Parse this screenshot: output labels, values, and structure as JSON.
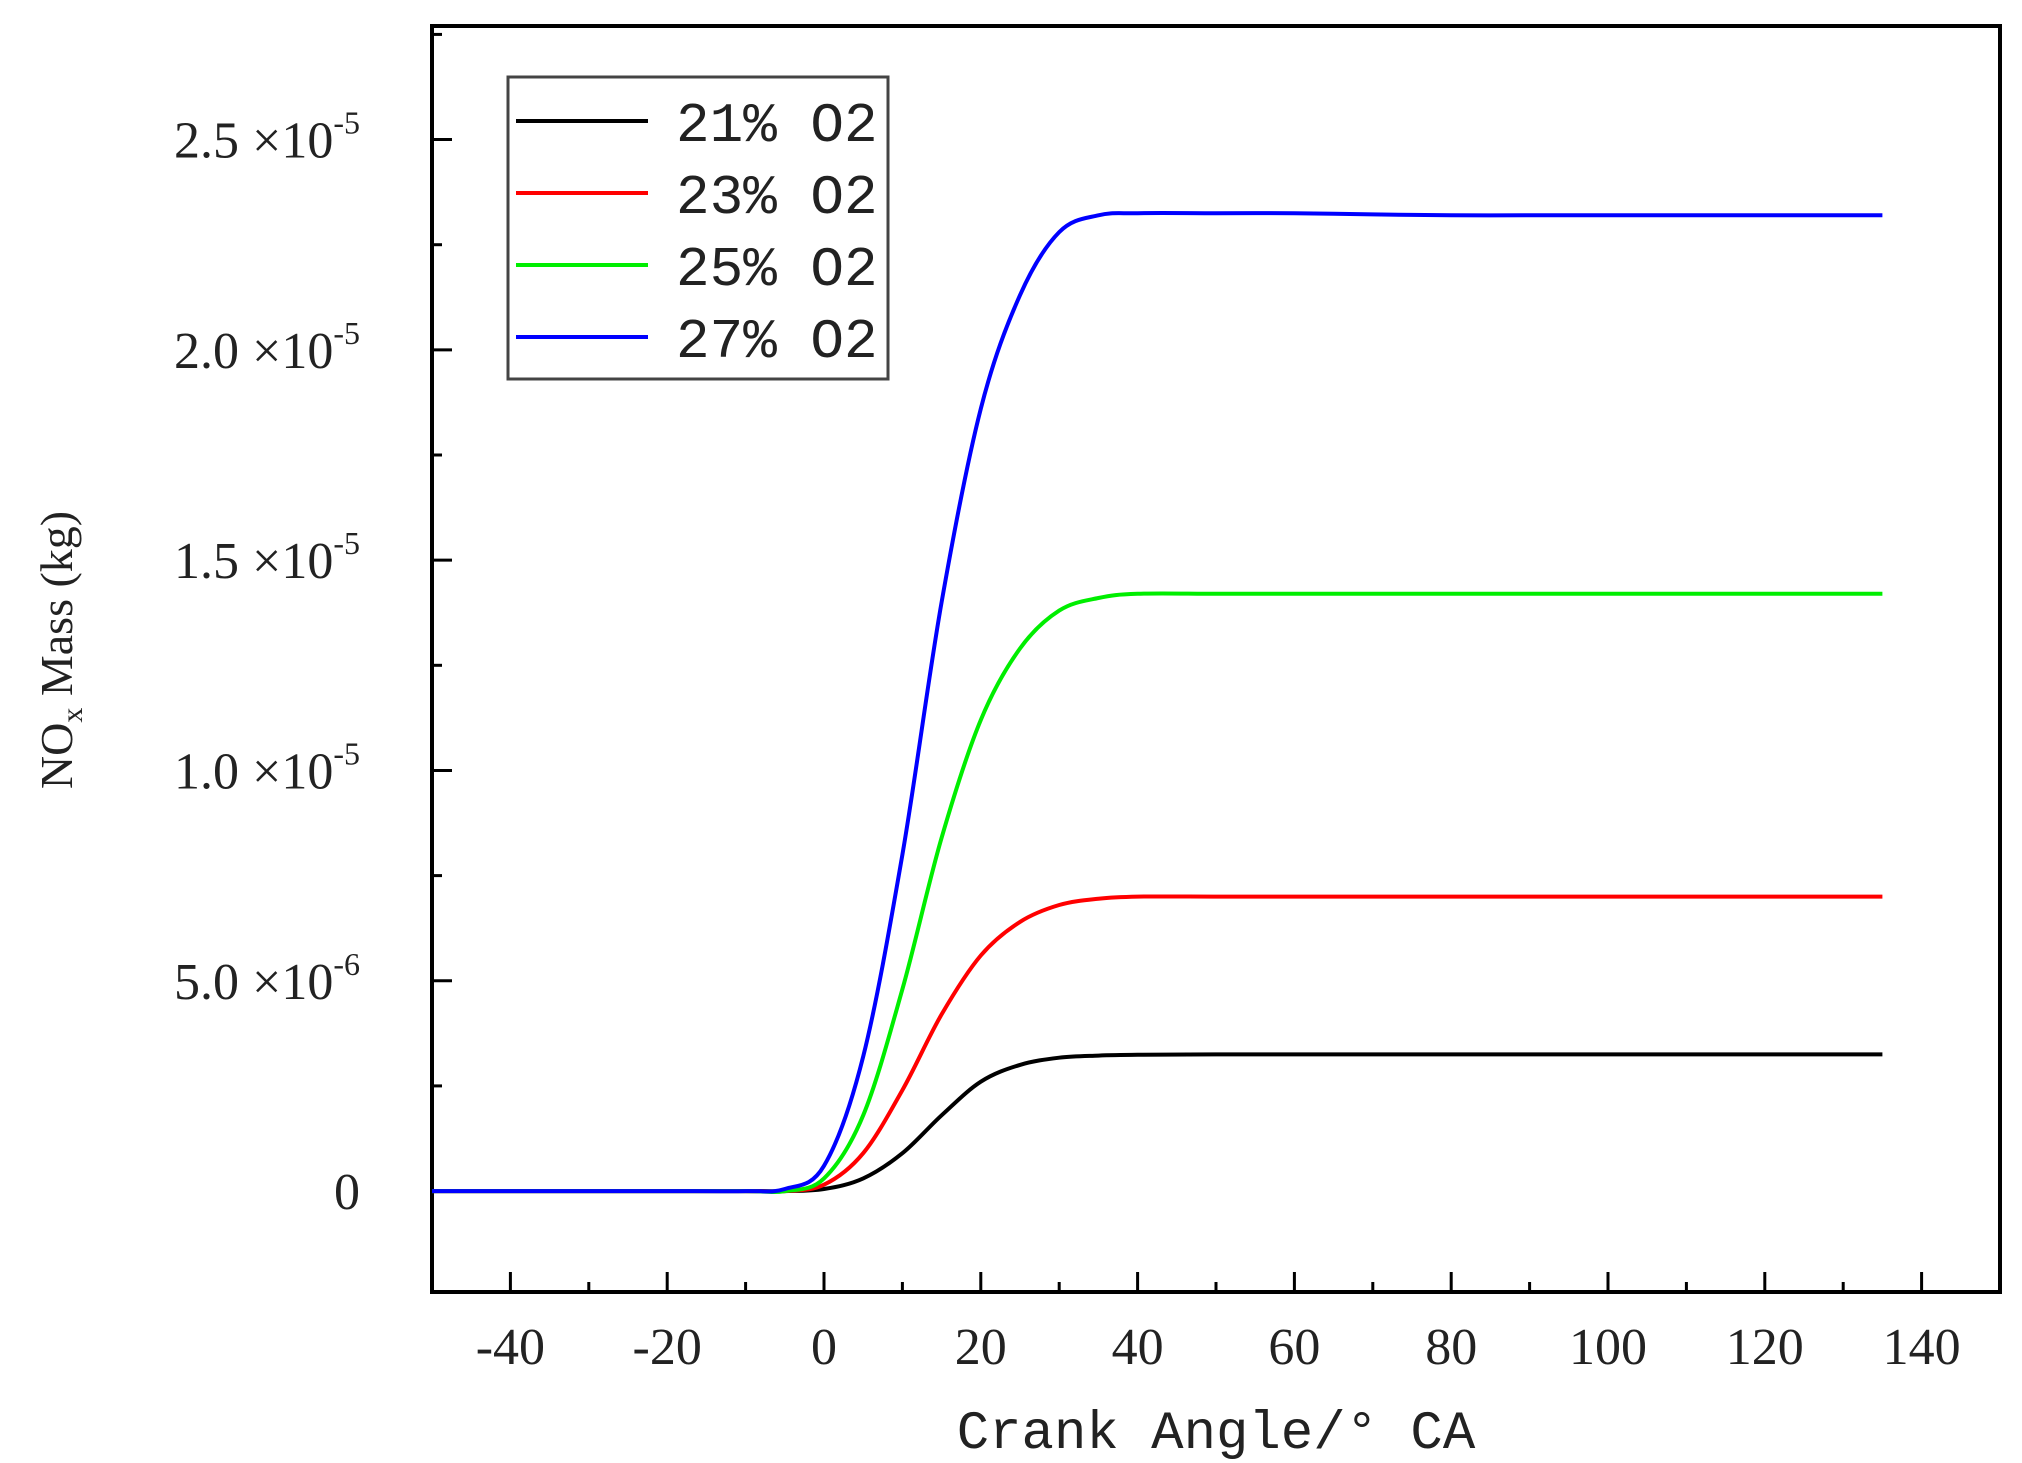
{
  "chart_data": {
    "type": "line",
    "title": "",
    "xlabel": "Crank Angle/° CA",
    "ylabel_main": "NO",
    "ylabel_sub": "x",
    "ylabel_rest": " Mass (kg)",
    "xlim": [
      -50,
      150
    ],
    "ylim": [
      -2.4e-06,
      2.77e-05
    ],
    "x_ticks": [
      -40,
      -20,
      0,
      20,
      40,
      60,
      80,
      100,
      120,
      140
    ],
    "x_tick_labels": [
      "-40",
      "-20",
      "0",
      "20",
      "40",
      "60",
      "80",
      "100",
      "120",
      "140"
    ],
    "y_ticks": [
      {
        "value": 0,
        "mantissa": "0",
        "exponent": ""
      },
      {
        "value": 5e-06,
        "mantissa": "5.0 ×10",
        "exponent": "-6"
      },
      {
        "value": 1e-05,
        "mantissa": "1.0 ×10",
        "exponent": "-5"
      },
      {
        "value": 1.5e-05,
        "mantissa": "1.5 ×10",
        "exponent": "-5"
      },
      {
        "value": 2e-05,
        "mantissa": "2.0 ×10",
        "exponent": "-5"
      },
      {
        "value": 2.5e-05,
        "mantissa": "2.5 ×10",
        "exponent": "-5"
      }
    ],
    "x": [
      -50,
      -40,
      -30,
      -20,
      -10,
      -5,
      0,
      5,
      10,
      15,
      20,
      25,
      30,
      35,
      40,
      50,
      60,
      70,
      80,
      90,
      100,
      110,
      120,
      130,
      135
    ],
    "series": [
      {
        "name": "21% O2",
        "color": "#000000",
        "values": [
          0,
          0,
          0,
          0,
          0,
          0,
          5e-08,
          3e-07,
          9e-07,
          1.8e-06,
          2.6e-06,
          3e-06,
          3.17e-06,
          3.22e-06,
          3.24e-06,
          3.25e-06,
          3.25e-06,
          3.25e-06,
          3.25e-06,
          3.25e-06,
          3.25e-06,
          3.25e-06,
          3.25e-06,
          3.25e-06,
          3.25e-06
        ]
      },
      {
        "name": "23% O2",
        "color": "#ff0000",
        "values": [
          0,
          0,
          0,
          0,
          0,
          0,
          1.5e-07,
          9e-07,
          2.4e-06,
          4.2e-06,
          5.6e-06,
          6.4e-06,
          6.8e-06,
          6.95e-06,
          7e-06,
          7e-06,
          7e-06,
          7e-06,
          7e-06,
          7e-06,
          7e-06,
          7e-06,
          7e-06,
          7e-06,
          7e-06
        ]
      },
      {
        "name": "25% O2",
        "color": "#00ee00",
        "values": [
          0,
          0,
          0,
          0,
          0,
          0,
          3e-07,
          1.8e-06,
          4.8e-06,
          8.4e-06,
          1.12e-05,
          1.29e-05,
          1.38e-05,
          1.41e-05,
          1.42e-05,
          1.42e-05,
          1.42e-05,
          1.42e-05,
          1.42e-05,
          1.42e-05,
          1.42e-05,
          1.42e-05,
          1.42e-05,
          1.42e-05,
          1.42e-05
        ]
      },
      {
        "name": "27% O2",
        "color": "#0000ff",
        "values": [
          0,
          0,
          0,
          0,
          0,
          5e-08,
          6e-07,
          3.2e-06,
          8e-06,
          1.4e-05,
          1.86e-05,
          2.13e-05,
          2.28e-05,
          2.32e-05,
          2.325e-05,
          2.325e-05,
          2.325e-05,
          2.322e-05,
          2.32e-05,
          2.32e-05,
          2.32e-05,
          2.32e-05,
          2.32e-05,
          2.32e-05,
          2.32e-05
        ]
      }
    ],
    "legend_position": "top-left",
    "grid": false
  }
}
